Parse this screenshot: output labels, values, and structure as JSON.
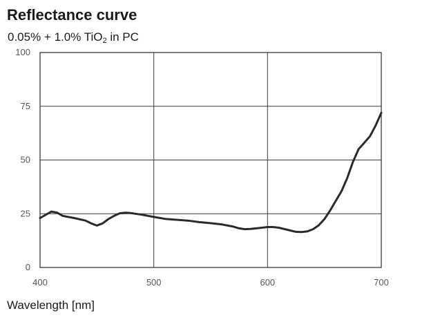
{
  "chart_data": {
    "type": "line",
    "title": "Reflectance curve",
    "subtitle": {
      "prefix": "0.05% + 1.0% TiO",
      "subscript": "2",
      "suffix": " in PC"
    },
    "xlabel": "Wavelength [nm]",
    "ylabel": "",
    "xlim": [
      400,
      700
    ],
    "ylim": [
      0,
      100
    ],
    "xticks": [
      400,
      500,
      600,
      700
    ],
    "yticks": [
      0,
      25,
      50,
      75,
      100
    ],
    "grid": true,
    "line_color": "#2a2a2a",
    "series": [
      {
        "x": [
          400,
          405,
          410,
          415,
          420,
          430,
          440,
          445,
          450,
          455,
          460,
          465,
          470,
          475,
          480,
          490,
          500,
          510,
          520,
          530,
          540,
          550,
          560,
          570,
          575,
          580,
          585,
          590,
          600,
          605,
          610,
          620,
          625,
          630,
          635,
          640,
          645,
          650,
          655,
          660,
          665,
          670,
          675,
          680,
          685,
          690,
          695,
          700
        ],
        "y": [
          23,
          24.5,
          26,
          25.5,
          24,
          23,
          21.8,
          20.5,
          19.5,
          20.5,
          22.5,
          24,
          25.2,
          25.5,
          25.3,
          24.5,
          23.5,
          22.6,
          22.2,
          21.8,
          21.1,
          20.6,
          20.0,
          19.0,
          18.2,
          17.8,
          17.9,
          18.2,
          18.8,
          18.8,
          18.5,
          17.2,
          16.6,
          16.5,
          16.8,
          17.8,
          19.6,
          22.5,
          26.5,
          31,
          35.5,
          41.5,
          49,
          55,
          58,
          61,
          66,
          72
        ]
      }
    ]
  }
}
